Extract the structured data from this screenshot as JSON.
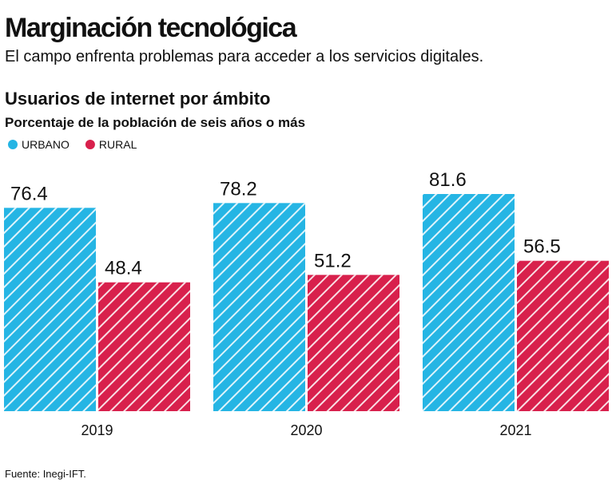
{
  "chart_data": {
    "type": "bar",
    "title": "Marginación tecnológica",
    "subtitle": "El campo enfrenta problemas para acceder a los servicios digitales.",
    "chart_title": "Usuarios de internet por ámbito",
    "chart_subtitle": "Porcentaje de la población de seis años o más",
    "categories": [
      "2019",
      "2020",
      "2021"
    ],
    "series": [
      {
        "name": "URBANO",
        "color": "#25b5e4",
        "values": [
          76.4,
          78.2,
          81.6
        ]
      },
      {
        "name": "RURAL",
        "color": "#d8204c",
        "values": [
          48.4,
          51.2,
          56.5
        ]
      }
    ],
    "source": "Fuente: Inegi-IFT."
  }
}
